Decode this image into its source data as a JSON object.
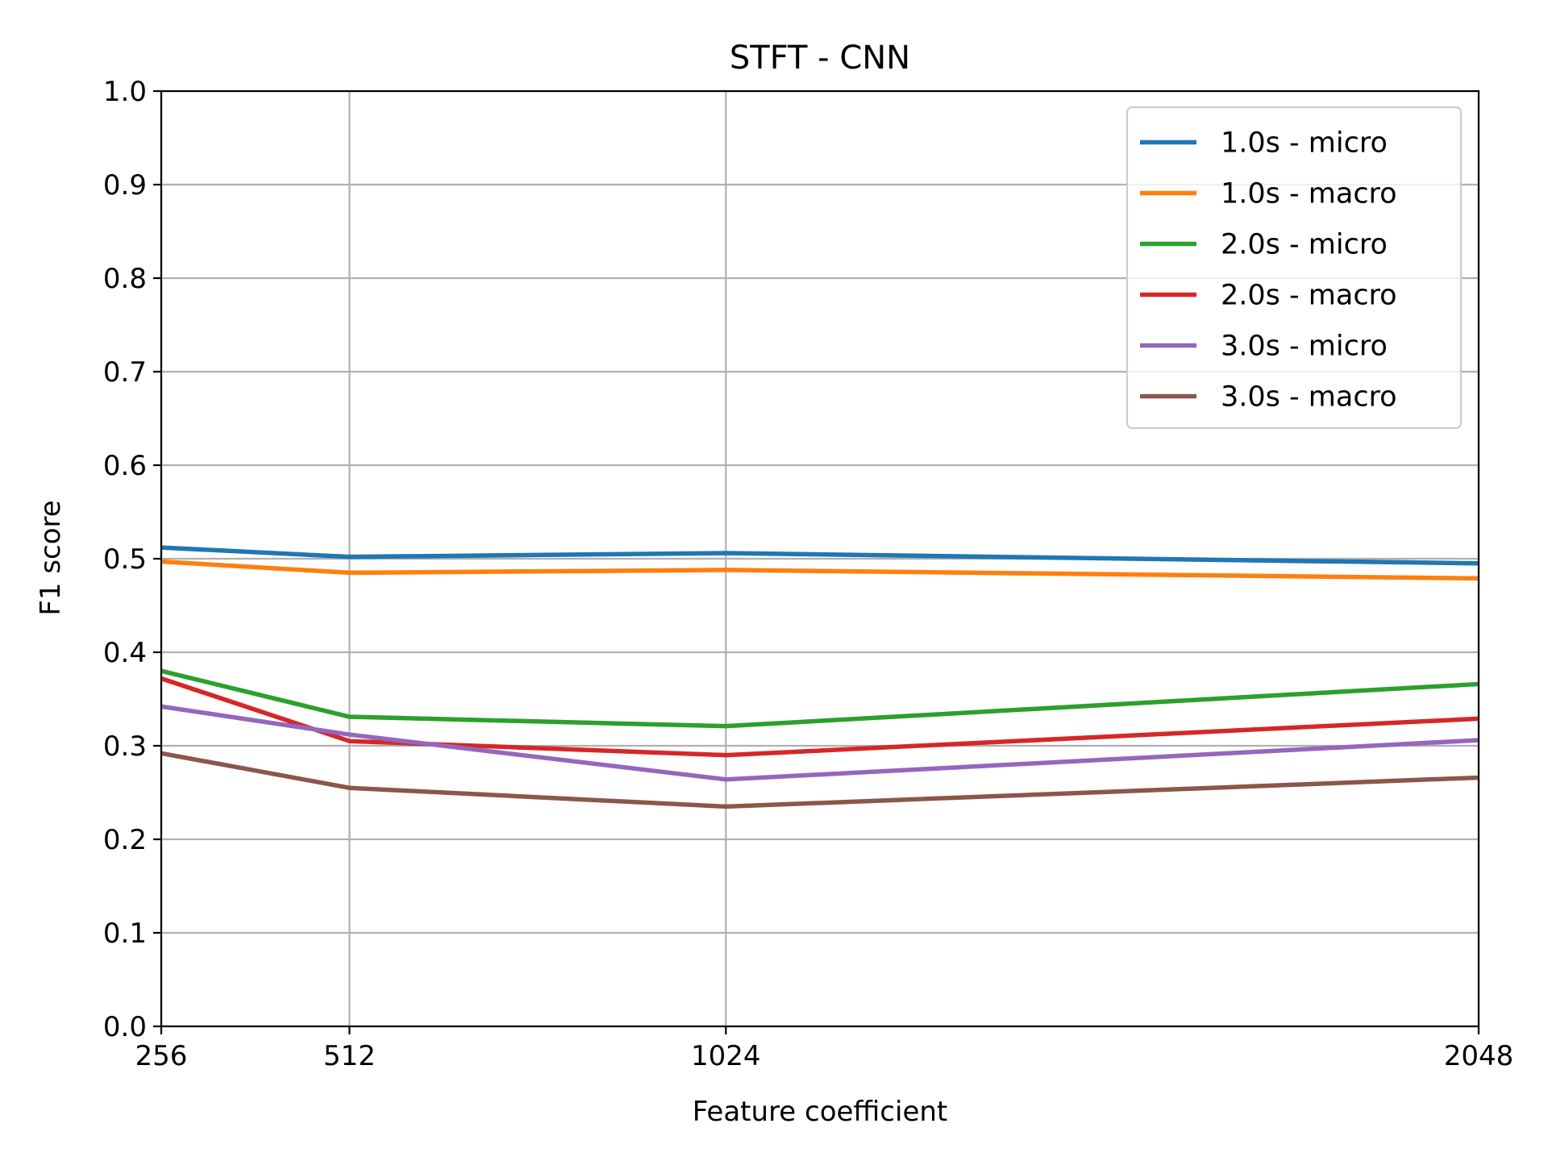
{
  "chart_data": {
    "type": "line",
    "title": "STFT - CNN",
    "xlabel": "Feature coefficient",
    "ylabel": "F1 score",
    "x": [
      256,
      512,
      1024,
      2048
    ],
    "x_tick_labels": [
      "256",
      "512",
      "1024",
      "2048"
    ],
    "ylim": [
      0.0,
      1.0
    ],
    "y_ticks": [
      0.0,
      0.1,
      0.2,
      0.3,
      0.4,
      0.5,
      0.6,
      0.7,
      0.8,
      0.9,
      1.0
    ],
    "y_tick_labels": [
      "0.0",
      "0.1",
      "0.2",
      "0.3",
      "0.4",
      "0.5",
      "0.6",
      "0.7",
      "0.8",
      "0.9",
      "1.0"
    ],
    "grid": true,
    "legend_position": "top-right",
    "series": [
      {
        "name": "1.0s - micro",
        "color": "#1f77b4",
        "values": [
          0.512,
          0.502,
          0.506,
          0.495
        ]
      },
      {
        "name": "1.0s - macro",
        "color": "#ff7f0e",
        "values": [
          0.497,
          0.485,
          0.488,
          0.479
        ]
      },
      {
        "name": "2.0s - micro",
        "color": "#2ca02c",
        "values": [
          0.38,
          0.331,
          0.321,
          0.366
        ]
      },
      {
        "name": "2.0s - macro",
        "color": "#d62728",
        "values": [
          0.372,
          0.305,
          0.29,
          0.329
        ]
      },
      {
        "name": "3.0s - micro",
        "color": "#9467bd",
        "values": [
          0.342,
          0.312,
          0.264,
          0.306
        ]
      },
      {
        "name": "3.0s - macro",
        "color": "#8c564b",
        "values": [
          0.292,
          0.255,
          0.235,
          0.266
        ]
      }
    ]
  }
}
